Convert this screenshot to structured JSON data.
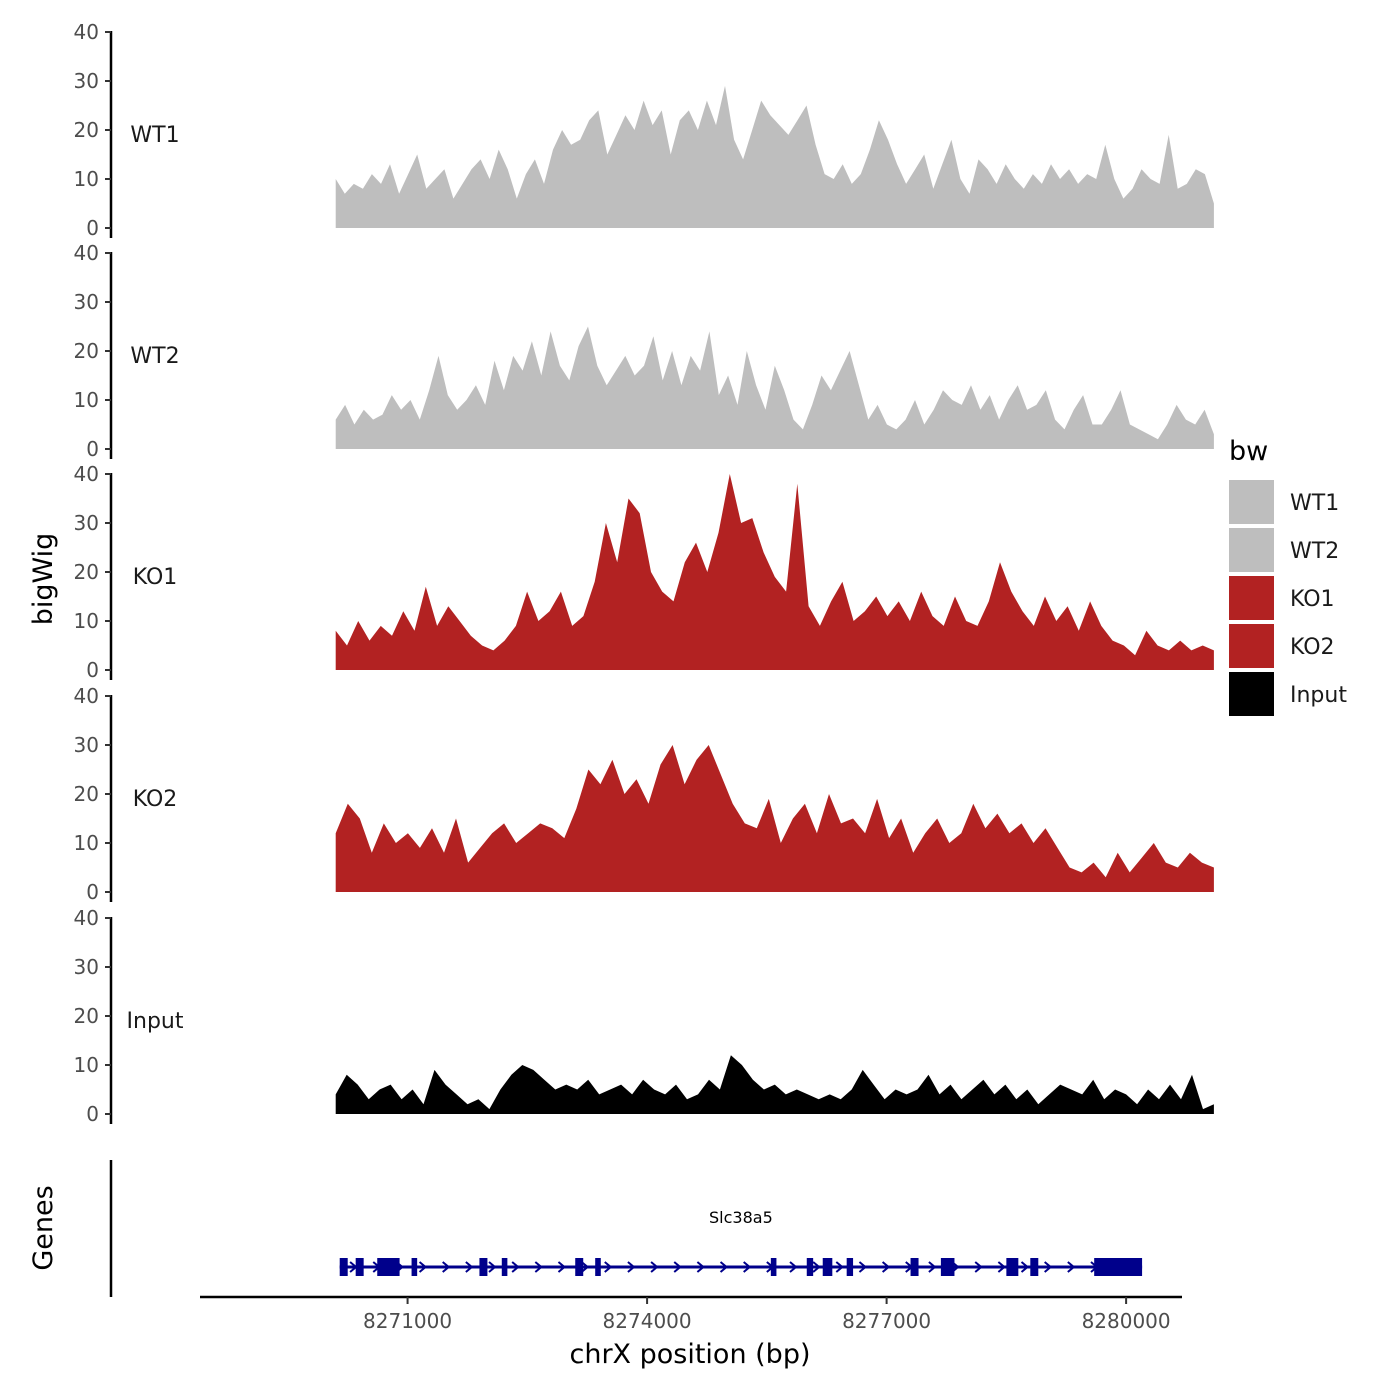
{
  "chart_data": {
    "type": "area",
    "ylabel": "bigWig",
    "xlabel": "chrX position (bp)",
    "ylim": [
      0,
      40
    ],
    "y_ticks": [
      0,
      10,
      20,
      30,
      40
    ],
    "xlim": [
      8268400,
      8280700
    ],
    "x_ticks": [
      8271000,
      8274000,
      8277000,
      8280000
    ],
    "x_tick_labels": [
      "8271000",
      "8274000",
      "8277000",
      "8280000"
    ],
    "legend": {
      "title": "bw",
      "entries": [
        {
          "label": "WT1",
          "color": "#BEBEBE"
        },
        {
          "label": "WT2",
          "color": "#BEBEBE"
        },
        {
          "label": "KO1",
          "color": "#B22222"
        },
        {
          "label": "KO2",
          "color": "#B22222"
        },
        {
          "label": "Input",
          "color": "#000000"
        }
      ]
    },
    "series": [
      {
        "name": "WT1",
        "color": "#BEBEBE",
        "x_start": 8270100,
        "x_end": 8281100,
        "values": [
          10,
          7,
          9,
          8,
          11,
          9,
          13,
          7,
          11,
          15,
          8,
          10,
          12,
          6,
          9,
          12,
          14,
          10,
          16,
          12,
          6,
          11,
          14,
          9,
          16,
          20,
          17,
          18,
          22,
          24,
          15,
          19,
          23,
          20,
          26,
          21,
          24,
          15,
          22,
          24,
          20,
          26,
          21,
          29,
          18,
          14,
          20,
          26,
          23,
          21,
          19,
          22,
          25,
          17,
          11,
          10,
          13,
          9,
          11,
          16,
          22,
          18,
          13,
          9,
          12,
          15,
          8,
          13,
          18,
          10,
          7,
          14,
          12,
          9,
          13,
          10,
          8,
          11,
          9,
          13,
          10,
          12,
          9,
          11,
          10,
          17,
          10,
          6,
          8,
          12,
          10,
          9,
          19,
          8,
          9,
          12,
          11,
          5
        ]
      },
      {
        "name": "WT2",
        "color": "#BEBEBE",
        "x_start": 8270100,
        "x_end": 8281100,
        "values": [
          6,
          9,
          5,
          8,
          6,
          7,
          11,
          8,
          10,
          6,
          12,
          19,
          11,
          8,
          10,
          13,
          9,
          18,
          12,
          19,
          16,
          22,
          15,
          24,
          17,
          14,
          21,
          25,
          17,
          13,
          16,
          19,
          15,
          17,
          23,
          14,
          20,
          13,
          19,
          16,
          24,
          11,
          15,
          9,
          20,
          13,
          8,
          17,
          12,
          6,
          4,
          9,
          15,
          12,
          16,
          20,
          13,
          6,
          9,
          5,
          4,
          6,
          10,
          5,
          8,
          12,
          10,
          9,
          13,
          8,
          11,
          6,
          10,
          13,
          8,
          9,
          12,
          6,
          4,
          8,
          11,
          5,
          5,
          8,
          12,
          5,
          4,
          3,
          2,
          5,
          9,
          6,
          5,
          8,
          3
        ]
      },
      {
        "name": "KO1",
        "color": "#B22222",
        "x_start": 8270100,
        "x_end": 8281100,
        "values": [
          8,
          5,
          10,
          6,
          9,
          7,
          12,
          8,
          17,
          9,
          13,
          10,
          7,
          5,
          4,
          6,
          9,
          16,
          10,
          12,
          16,
          9,
          11,
          18,
          30,
          22,
          35,
          32,
          20,
          16,
          14,
          22,
          26,
          20,
          28,
          40,
          30,
          31,
          24,
          19,
          16,
          38,
          13,
          9,
          14,
          18,
          10,
          12,
          15,
          11,
          14,
          10,
          16,
          11,
          9,
          15,
          10,
          9,
          14,
          22,
          16,
          12,
          9,
          15,
          10,
          13,
          8,
          14,
          9,
          6,
          5,
          3,
          8,
          5,
          4,
          6,
          4,
          5,
          4
        ]
      },
      {
        "name": "KO2",
        "color": "#B22222",
        "x_start": 8270100,
        "x_end": 8281100,
        "values": [
          12,
          18,
          15,
          8,
          14,
          10,
          12,
          9,
          13,
          8,
          15,
          6,
          9,
          12,
          14,
          10,
          12,
          14,
          13,
          11,
          17,
          25,
          22,
          27,
          20,
          23,
          18,
          26,
          30,
          22,
          27,
          30,
          24,
          18,
          14,
          13,
          19,
          10,
          15,
          18,
          12,
          20,
          14,
          15,
          12,
          19,
          11,
          15,
          8,
          12,
          15,
          10,
          12,
          18,
          13,
          16,
          12,
          14,
          10,
          13,
          9,
          5,
          4,
          6,
          3,
          8,
          4,
          7,
          10,
          6,
          5,
          8,
          6,
          5
        ]
      },
      {
        "name": "Input",
        "color": "#000000",
        "x_start": 8270100,
        "x_end": 8281100,
        "values": [
          4,
          8,
          6,
          3,
          5,
          6,
          3,
          5,
          2,
          9,
          6,
          4,
          2,
          3,
          1,
          5,
          8,
          10,
          9,
          7,
          5,
          6,
          5,
          7,
          4,
          5,
          6,
          4,
          7,
          5,
          4,
          6,
          3,
          4,
          7,
          5,
          12,
          10,
          7,
          5,
          6,
          4,
          5,
          4,
          3,
          4,
          3,
          5,
          9,
          6,
          3,
          5,
          4,
          5,
          8,
          4,
          6,
          3,
          5,
          7,
          4,
          6,
          3,
          5,
          2,
          4,
          6,
          5,
          4,
          7,
          3,
          5,
          4,
          2,
          5,
          3,
          6,
          3,
          8,
          1,
          2
        ]
      }
    ],
    "genes_track": {
      "ylabel": "Genes",
      "gene_name": "Slc38a5",
      "color": "#00008B",
      "start": 8270150,
      "end": 8280200,
      "exons": [
        [
          8270150,
          8270250
        ],
        [
          8270350,
          8270450
        ],
        [
          8270620,
          8270900
        ],
        [
          8271050,
          8271120
        ],
        [
          8271900,
          8272000
        ],
        [
          8272180,
          8272250
        ],
        [
          8273100,
          8273200
        ],
        [
          8273350,
          8273420
        ],
        [
          8275550,
          8275620
        ],
        [
          8276000,
          8276080
        ],
        [
          8276200,
          8276320
        ],
        [
          8276500,
          8276580
        ],
        [
          8277300,
          8277400
        ],
        [
          8277680,
          8277850
        ],
        [
          8278500,
          8278650
        ],
        [
          8278800,
          8278900
        ],
        [
          8279600,
          8280200
        ]
      ]
    }
  }
}
